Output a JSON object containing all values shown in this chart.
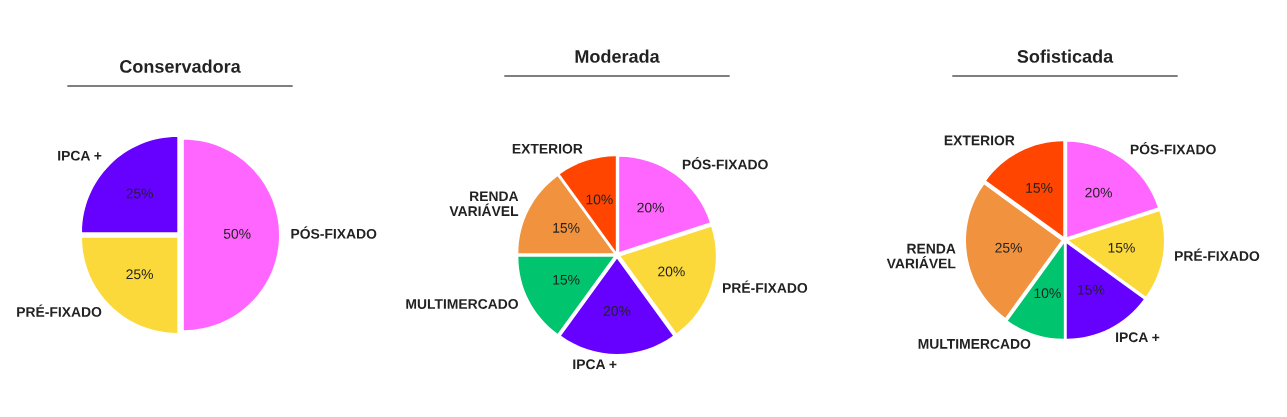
{
  "chart_data": [
    {
      "type": "pie",
      "title": "Conservadora",
      "categories": [
        "PÓS-FIXADO",
        "PRÉ-FIXADO",
        "IPCA +"
      ],
      "values": [
        50,
        25,
        25
      ],
      "colors": [
        "#ff66ff",
        "#fcd93a",
        "#6600ff"
      ],
      "value_labels": [
        "50%",
        "25%",
        "25%"
      ],
      "legend": false
    },
    {
      "type": "pie",
      "title": "Moderada",
      "categories": [
        "PÓS-FIXADO",
        "PRÉ-FIXADO",
        "IPCA +",
        "MULTIMERCADO",
        "RENDA\nVARIÁVEL",
        "EXTERIOR"
      ],
      "values": [
        20,
        20,
        20,
        15,
        15,
        10
      ],
      "colors": [
        "#ff66ff",
        "#fcd93a",
        "#6600ff",
        "#00c46e",
        "#f0923e",
        "#ff4500"
      ],
      "value_labels": [
        "20%",
        "20%",
        "20%",
        "15%",
        "15%",
        "10%"
      ],
      "legend": false
    },
    {
      "type": "pie",
      "title": "Sofisticada",
      "categories": [
        "PÓS-FIXADO",
        "PRÉ-FIXADO",
        "IPCA +",
        "MULTIMERCADO",
        "RENDA\nVARIÁVEL",
        "EXTERIOR"
      ],
      "values": [
        20,
        15,
        15,
        10,
        25,
        15
      ],
      "colors": [
        "#ff66ff",
        "#fcd93a",
        "#6600ff",
        "#00c46e",
        "#f0923e",
        "#ff4500"
      ],
      "value_labels": [
        "20%",
        "15%",
        "15%",
        "10%",
        "25%",
        "15%"
      ],
      "legend": false
    }
  ]
}
